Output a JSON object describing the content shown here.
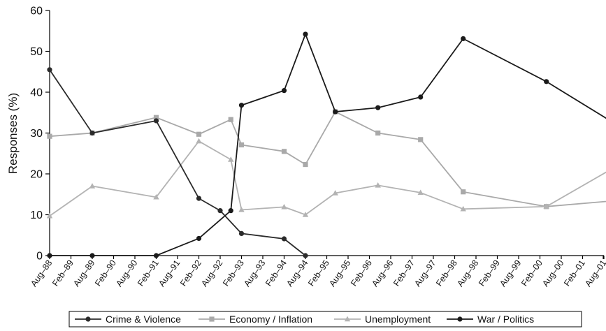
{
  "chart_data": {
    "type": "line",
    "title": "",
    "xlabel": "",
    "ylabel": "Responses (%)",
    "ylim": [
      0,
      60
    ],
    "yticks": [
      0,
      10,
      20,
      30,
      40,
      50,
      60
    ],
    "grid": false,
    "legend_position": "bottom",
    "x_tick_labels": [
      "Aug–88",
      "Feb–89",
      "Aug–89",
      "Feb–90",
      "Aug–90",
      "Feb–91",
      "Aug–91",
      "Feb–92",
      "Aug–92",
      "Feb–93",
      "Aug–93",
      "Feb–94",
      "Aug–94",
      "Feb–95",
      "Aug–95",
      "Feb–96",
      "Aug–96",
      "Feb–97",
      "Aug–97",
      "Feb–98",
      "Aug–98",
      "Feb–99",
      "Aug–99",
      "Feb–00",
      "Aug–00",
      "Feb–01",
      "Aug–01"
    ],
    "series": [
      {
        "name": "Crime & Violence",
        "color": "#2b2b2b",
        "marker": "circle",
        "x": [
          "Aug–88",
          "Aug–89",
          "Feb–91",
          "Feb–92",
          "Aug–92",
          "Feb–93",
          "Feb–94",
          "Aug–94"
        ],
        "x_index": [
          0,
          2,
          5,
          7,
          8,
          9,
          11,
          12
        ],
        "values": [
          45.5,
          30,
          33,
          14,
          11,
          5.4,
          4.1,
          0
        ]
      },
      {
        "name": "Economy / Inflation",
        "color": "#a9a9a9",
        "marker": "square",
        "x": [
          "Aug–88",
          "Aug–89",
          "Feb–91",
          "Feb–92",
          "Aug–92",
          "Feb–93",
          "Feb–94",
          "Aug–94",
          "Feb–95",
          "Feb–96",
          "Feb–97",
          "Feb–98",
          "Feb–00",
          "Aug–01"
        ],
        "x_index": [
          0,
          2,
          5,
          7,
          8.5,
          9,
          11,
          12,
          13.4,
          15.4,
          17.4,
          19.4,
          23.3,
          27.8
        ],
        "values": [
          29.2,
          30,
          33.8,
          29.7,
          33.3,
          27.1,
          25.5,
          22.3,
          35.2,
          30,
          28.4,
          15.6,
          12,
          14
        ]
      },
      {
        "name": "Unemployment",
        "color": "#b3b3b3",
        "marker": "triangle",
        "x": [
          "Aug–88",
          "Aug–89",
          "Feb–91",
          "Feb–92",
          "Aug–92",
          "Feb–93",
          "Feb–94",
          "Aug–94",
          "Feb–95",
          "Feb–96",
          "Feb–97",
          "Feb–98",
          "Feb–00",
          "Aug–01"
        ],
        "x_index": [
          0,
          2,
          5,
          7,
          8.5,
          9,
          11,
          12,
          13.4,
          15.4,
          17.4,
          19.4,
          23.3,
          27.8
        ],
        "values": [
          9.7,
          17,
          14.3,
          28,
          23.5,
          11.2,
          11.9,
          10,
          15.3,
          17.2,
          15.4,
          11.4,
          12,
          25.5
        ]
      },
      {
        "name": "War / Politics",
        "color": "#1a1a1a",
        "marker": "circle",
        "x": [
          "Aug–88",
          "Aug–89",
          "Feb–91",
          "Feb–92",
          "Aug–92",
          "Feb–93",
          "Feb–94",
          "Aug–94",
          "Feb–95",
          "Feb–96",
          "Feb–97",
          "Feb–98",
          "Feb–00",
          "Aug–01"
        ],
        "x_index": [
          0,
          2,
          5,
          7,
          8.5,
          9,
          11,
          12,
          13.4,
          15.4,
          17.4,
          19.4,
          23.3,
          27.8
        ],
        "values": [
          0,
          0,
          0,
          4.2,
          11,
          36.8,
          40.4,
          54.2,
          35.2,
          36.2,
          38.8,
          53.1,
          42.6,
          28.2
        ]
      }
    ]
  }
}
